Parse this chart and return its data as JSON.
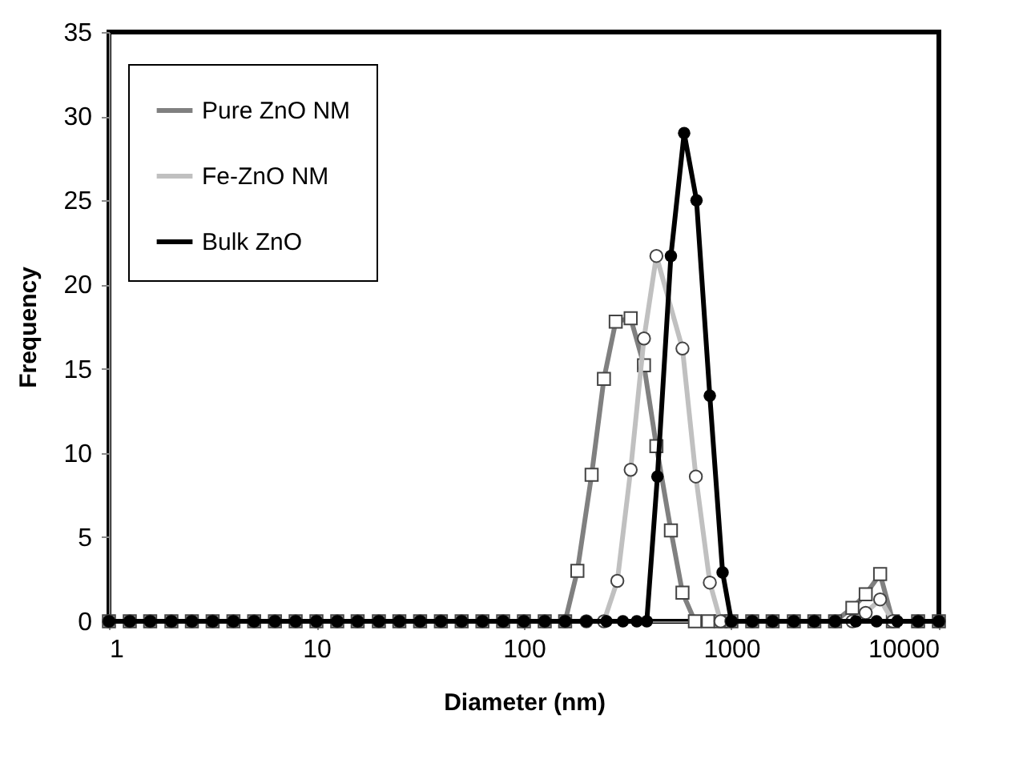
{
  "chart_data": {
    "type": "line",
    "xlabel": "Diameter (nm)",
    "ylabel": "Frequency",
    "log": "x",
    "xlim": [
      1,
      10000
    ],
    "xticks": [
      1,
      10,
      100,
      1000,
      10000
    ],
    "ylim": [
      0,
      35
    ],
    "yticks": [
      0,
      5,
      10,
      15,
      20,
      25,
      30,
      35
    ],
    "legend": "top left",
    "grid": false,
    "series": [
      {
        "name": "Pure ZnO NM",
        "color": "#808080",
        "marker": "square",
        "x": [
          1,
          1.26,
          1.58,
          2,
          2.51,
          3.16,
          3.98,
          5.01,
          6.31,
          7.94,
          10,
          12.6,
          15.8,
          20,
          25.1,
          31.6,
          39.8,
          50.1,
          63.1,
          79.4,
          100,
          126,
          158,
          181,
          212,
          243,
          277,
          327,
          379,
          435,
          511,
          581,
          667,
          773,
          887,
          1000,
          1260,
          1580,
          2000,
          2510,
          3160,
          3830,
          4440,
          5210,
          6000,
          7940,
          10000
        ],
        "values": [
          0,
          0,
          0,
          0,
          0,
          0,
          0,
          0,
          0,
          0,
          0,
          0,
          0,
          0,
          0,
          0,
          0,
          0,
          0,
          0,
          0,
          0,
          0,
          3,
          8.7,
          14.4,
          17.8,
          18,
          15.2,
          10.4,
          5.4,
          1.7,
          0,
          0,
          0,
          0,
          0,
          0,
          0,
          0,
          0,
          0.8,
          1.6,
          2.8,
          0,
          0,
          0
        ]
      },
      {
        "name": "Fe-ZnO NM",
        "color": "#c0c0c0",
        "marker": "circle",
        "x": [
          1,
          1.26,
          1.58,
          2,
          2.51,
          3.16,
          3.98,
          5.01,
          6.31,
          7.94,
          10,
          12.6,
          15.8,
          20,
          25.1,
          31.6,
          39.8,
          50.1,
          63.1,
          79.4,
          100,
          126,
          158,
          200,
          243,
          282,
          327,
          379,
          435,
          581,
          674,
          787,
          887,
          1000,
          1260,
          1580,
          2000,
          2510,
          3160,
          3830,
          4440,
          5210,
          6000,
          7940,
          10000
        ],
        "values": [
          0,
          0,
          0,
          0,
          0,
          0,
          0,
          0,
          0,
          0,
          0,
          0,
          0,
          0,
          0,
          0,
          0,
          0,
          0,
          0,
          0,
          0,
          0,
          0,
          0,
          2.4,
          9,
          16.8,
          21.7,
          16.2,
          8.6,
          2.3,
          0,
          0,
          0,
          0,
          0,
          0,
          0,
          0,
          0.5,
          1.3,
          0,
          0,
          0
        ]
      },
      {
        "name": "Bulk ZnO",
        "color": "#000000",
        "marker": "filled-circle",
        "x": [
          1,
          1.26,
          1.58,
          2,
          2.51,
          3.16,
          3.98,
          5.01,
          6.31,
          7.94,
          10,
          12.6,
          15.8,
          20,
          25.1,
          31.6,
          39.8,
          50.1,
          63.1,
          79.4,
          100,
          126,
          158,
          200,
          250,
          300,
          350,
          391,
          440,
          511,
          592,
          679,
          787,
          907,
          1000,
          1260,
          1580,
          2000,
          2510,
          3160,
          3980,
          5010,
          6310,
          7940,
          10000
        ],
        "values": [
          0,
          0,
          0,
          0,
          0,
          0,
          0,
          0,
          0,
          0,
          0,
          0,
          0,
          0,
          0,
          0,
          0,
          0,
          0,
          0,
          0,
          0,
          0,
          0,
          0,
          0,
          0,
          0,
          8.6,
          21.7,
          29,
          25,
          13.4,
          2.9,
          0,
          0,
          0,
          0,
          0,
          0,
          0,
          0,
          0,
          0,
          0
        ]
      }
    ]
  }
}
